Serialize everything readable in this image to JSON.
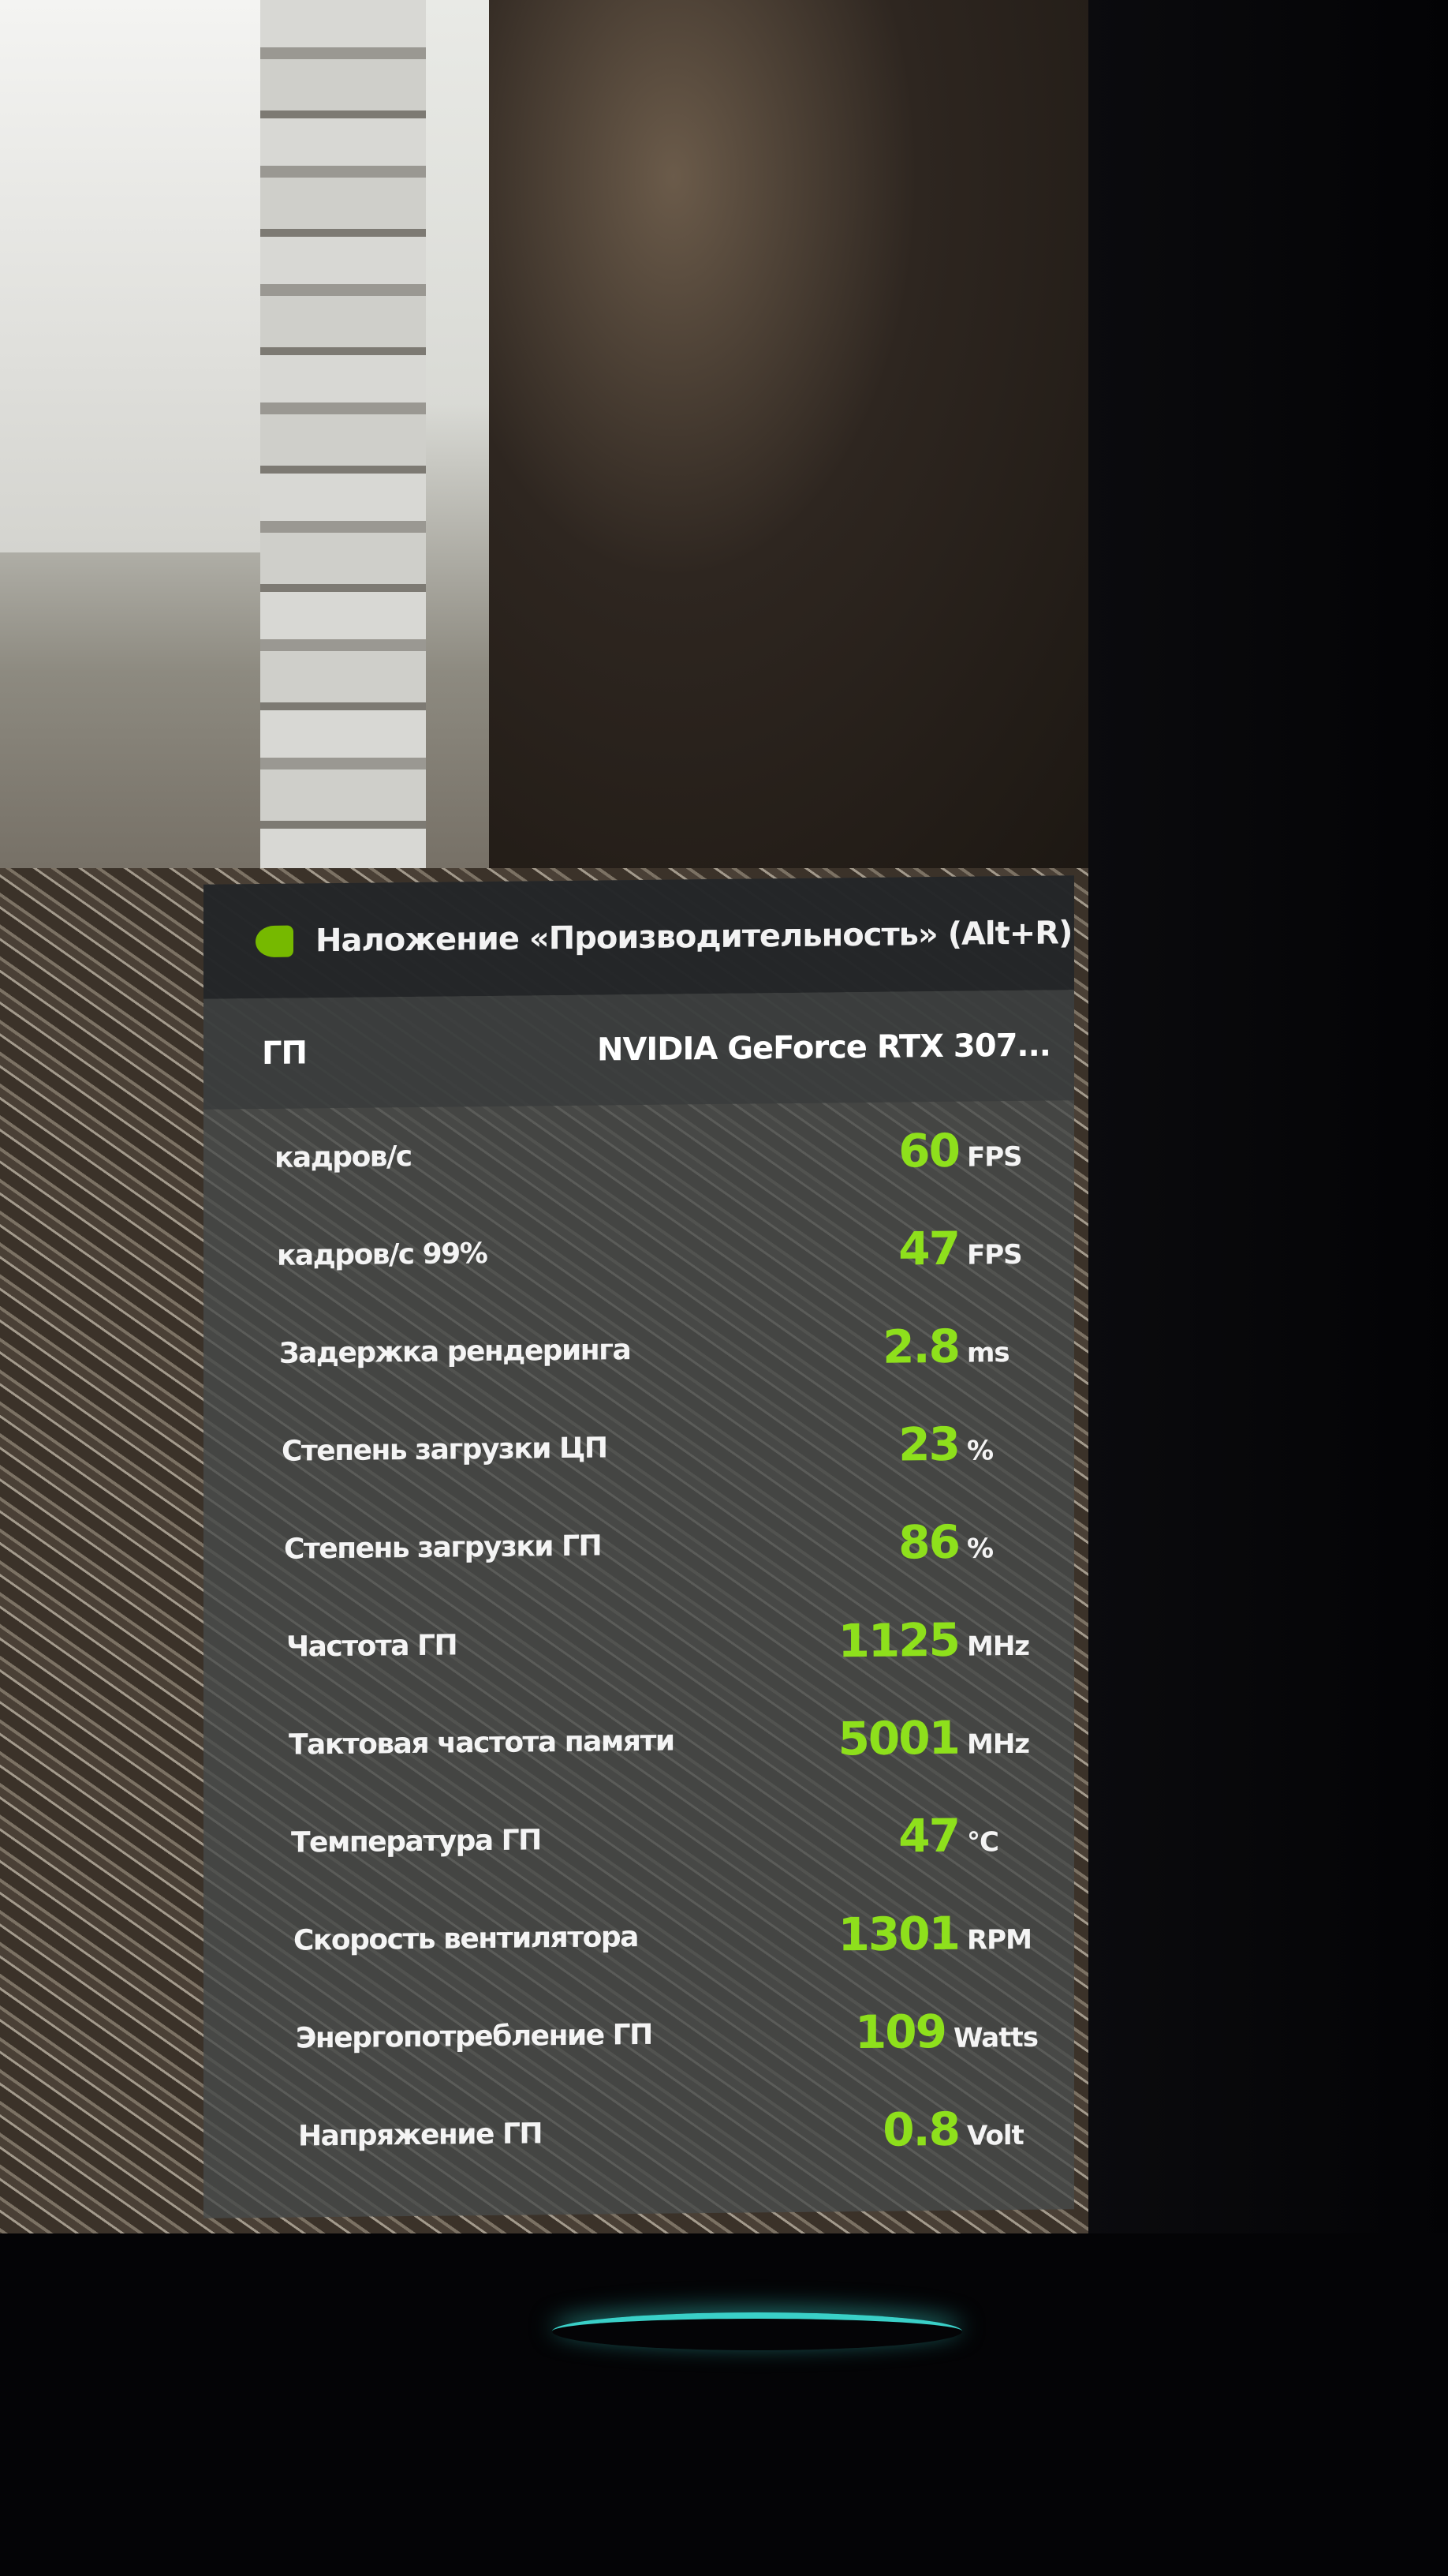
{
  "overlay": {
    "title": "Наложение «Производительность» (Alt+R)",
    "gpu_label": "ГП",
    "gpu_name": "NVIDIA GeForce RTX 307...",
    "accent_color": "#76b900",
    "value_color": "#8ee01c",
    "metrics": [
      {
        "label": "кадров/с",
        "value": "60",
        "unit": "FPS"
      },
      {
        "label": "кадров/с 99%",
        "value": "47",
        "unit": "FPS"
      },
      {
        "label": "Задержка рендеринга",
        "value": "2.8",
        "unit": "ms"
      },
      {
        "label": "Степень загрузки ЦП",
        "value": "23",
        "unit": "%"
      },
      {
        "label": "Степень загрузки ГП",
        "value": "86",
        "unit": "%"
      },
      {
        "label": "Частота ГП",
        "value": "1125",
        "unit": "MHz"
      },
      {
        "label": "Тактовая частота памяти",
        "value": "5001",
        "unit": "MHz"
      },
      {
        "label": "Температура ГП",
        "value": "47",
        "unit": "°C"
      },
      {
        "label": "Скорость вентилятора",
        "value": "1301",
        "unit": "RPM"
      },
      {
        "label": "Энергопотребление ГП",
        "value": "109",
        "unit": "Watts"
      },
      {
        "label": "Напряжение ГП",
        "value": "0.8",
        "unit": "Volt"
      }
    ]
  }
}
